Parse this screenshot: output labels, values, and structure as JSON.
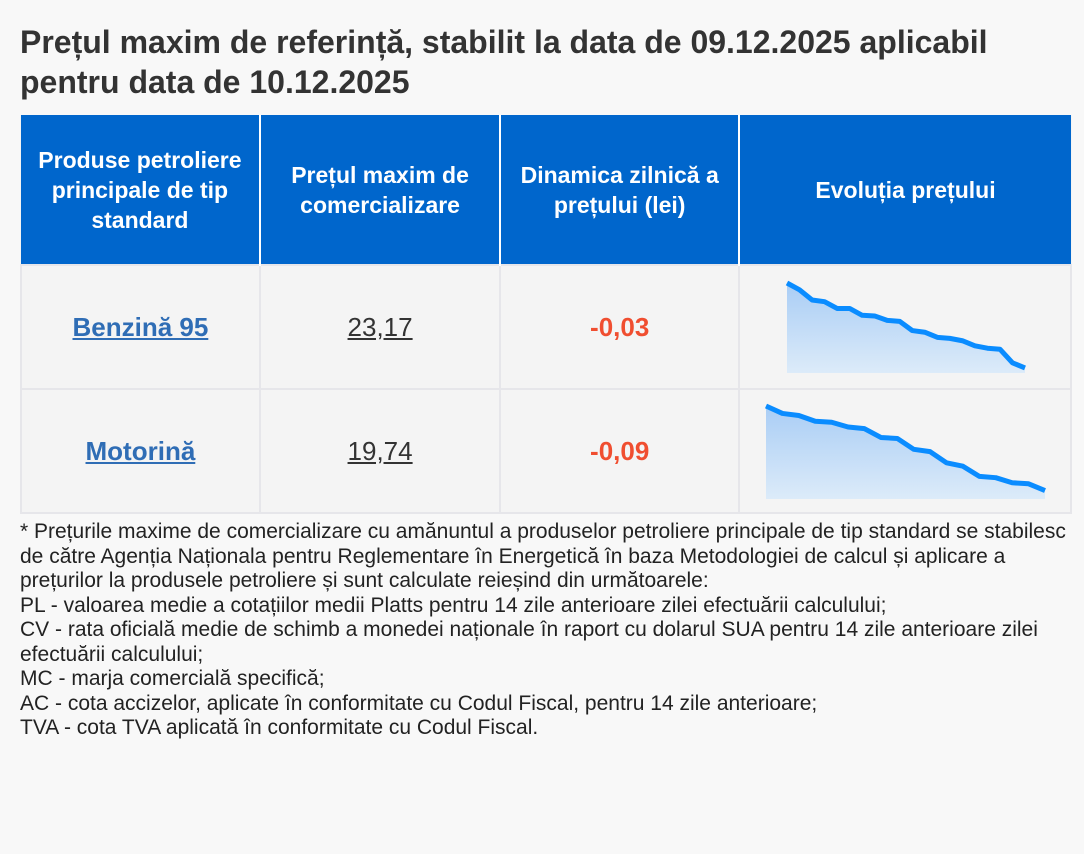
{
  "title": "Prețul maxim de referință, stabilit la data de 09.12.2025 aplicabil pentru data de 10.12.2025",
  "table": {
    "headers": [
      "Produse petroliere principale de tip standard",
      "Prețul maxim de comercializare",
      "Dinamica zilnică a prețului (lei)",
      "Evoluția prețului"
    ],
    "rows": [
      {
        "product": "Benzină 95",
        "price": "23,17",
        "delta": "-0,03",
        "trend": [
          265,
          245,
          215,
          210,
          190,
          190,
          170,
          168,
          155,
          152,
          125,
          120,
          105,
          102,
          95,
          80,
          73,
          70,
          30,
          15
        ]
      },
      {
        "product": "Motorină",
        "price": "19,74",
        "delta": "-0,09",
        "trend": [
          275,
          253,
          247,
          230,
          227,
          213,
          208,
          182,
          179,
          147,
          140,
          107,
          97,
          67,
          63,
          48,
          45,
          25
        ]
      }
    ]
  },
  "colors": {
    "header_bg": "#0066cc",
    "link": "#2f6db5",
    "negative": "#f04e30",
    "spark_line": "#0a8cff"
  },
  "notes": [
    "* Prețurile maxime de comercializare cu amănuntul a produselor petroliere principale de tip standard se stabilesc de către Agenția Naționala pentru Reglementare în Energetică în baza Metodologiei de calcul și aplicare a prețurilor la produsele petroliere și sunt calculate reieșind din următoarele:",
    "PL - valoarea medie a cotațiilor medii Platts pentru 14 zile anterioare zilei efectuării calculului;",
    "CV - rata oficială medie de schimb a monedei naționale în raport cu dolarul SUA pentru 14 zile anterioare zilei efectuării calculului;",
    "MC - marja comercială specifică;",
    "AC - cota accizelor, aplicate în conformitate cu Codul Fiscal, pentru 14 zile anterioare;",
    "TVA - cota TVA aplicată în conformitate cu Codul Fiscal."
  ]
}
